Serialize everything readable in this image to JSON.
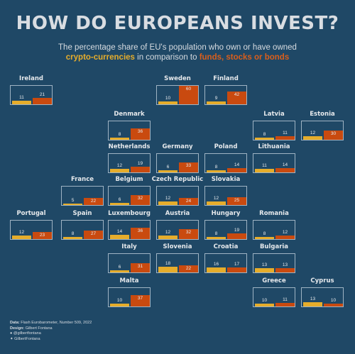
{
  "title": "HOW DO EUROPEANS INVEST?",
  "subtitle": {
    "line1": "The percentage share of EU's population who own or have owned",
    "crypto": "crypto-currencies",
    "middle": " in comparison to ",
    "stocks": "funds, stocks or bonds"
  },
  "footer": {
    "data_label": "Data:",
    "data_value": " Flash Eurobarometer, Number 509, 2022",
    "design_label": "Design:",
    "design_value": " Gilbert Fontana",
    "github": "@gilbertfontana",
    "twitter": "GilbertFontana"
  },
  "colors": {
    "crypto": "#e6ad2b",
    "stocks": "#c94a0f"
  },
  "chart_data": {
    "type": "bar",
    "ylim": [
      0,
      60
    ],
    "series": [
      "crypto-currencies",
      "funds, stocks or bonds"
    ],
    "countries": [
      {
        "name": "Ireland",
        "row": 0,
        "col": 0,
        "crypto": 11,
        "stocks": 21
      },
      {
        "name": "Sweden",
        "row": 0,
        "col": 3,
        "crypto": 10,
        "stocks": 60
      },
      {
        "name": "Finland",
        "row": 0,
        "col": 4,
        "crypto": 9,
        "stocks": 42
      },
      {
        "name": "Denmark",
        "row": 1,
        "col": 2,
        "crypto": 8,
        "stocks": 36
      },
      {
        "name": "Latvia",
        "row": 1,
        "col": 5,
        "crypto": 8,
        "stocks": 11
      },
      {
        "name": "Estonia",
        "row": 1,
        "col": 6,
        "crypto": 12,
        "stocks": 30
      },
      {
        "name": "Netherlands",
        "row": 2,
        "col": 2,
        "crypto": 12,
        "stocks": 19
      },
      {
        "name": "Germany",
        "row": 2,
        "col": 3,
        "crypto": 6,
        "stocks": 33
      },
      {
        "name": "Poland",
        "row": 2,
        "col": 4,
        "crypto": 8,
        "stocks": 14
      },
      {
        "name": "Lithuania",
        "row": 2,
        "col": 5,
        "crypto": 11,
        "stocks": 14
      },
      {
        "name": "France",
        "row": 3,
        "col": 1,
        "crypto": 5,
        "stocks": 22
      },
      {
        "name": "Belgium",
        "row": 3,
        "col": 2,
        "crypto": 6,
        "stocks": 32
      },
      {
        "name": "Czech Republic",
        "row": 3,
        "col": 3,
        "crypto": 12,
        "stocks": 24
      },
      {
        "name": "Slovakia",
        "row": 3,
        "col": 4,
        "crypto": 12,
        "stocks": 25
      },
      {
        "name": "Portugal",
        "row": 4,
        "col": 0,
        "crypto": 12,
        "stocks": 23
      },
      {
        "name": "Spain",
        "row": 4,
        "col": 1,
        "crypto": 8,
        "stocks": 27
      },
      {
        "name": "Luxembourg",
        "row": 4,
        "col": 2,
        "crypto": 14,
        "stocks": 36
      },
      {
        "name": "Austria",
        "row": 4,
        "col": 3,
        "crypto": 12,
        "stocks": 32
      },
      {
        "name": "Hungary",
        "row": 4,
        "col": 4,
        "crypto": 8,
        "stocks": 19
      },
      {
        "name": "Romania",
        "row": 4,
        "col": 5,
        "crypto": 8,
        "stocks": 12
      },
      {
        "name": "Italy",
        "row": 5,
        "col": 2,
        "crypto": 6,
        "stocks": 31
      },
      {
        "name": "Slovenia",
        "row": 5,
        "col": 3,
        "crypto": 18,
        "stocks": 22
      },
      {
        "name": "Croatia",
        "row": 5,
        "col": 4,
        "crypto": 16,
        "stocks": 17
      },
      {
        "name": "Bulgaria",
        "row": 5,
        "col": 5,
        "crypto": 13,
        "stocks": 13
      },
      {
        "name": "Malta",
        "row": 6,
        "col": 2,
        "crypto": 10,
        "stocks": 37
      },
      {
        "name": "Greece",
        "row": 6,
        "col": 5,
        "crypto": 10,
        "stocks": 11
      },
      {
        "name": "Cyprus",
        "row": 6,
        "col": 6,
        "crypto": 13,
        "stocks": 10
      }
    ]
  }
}
